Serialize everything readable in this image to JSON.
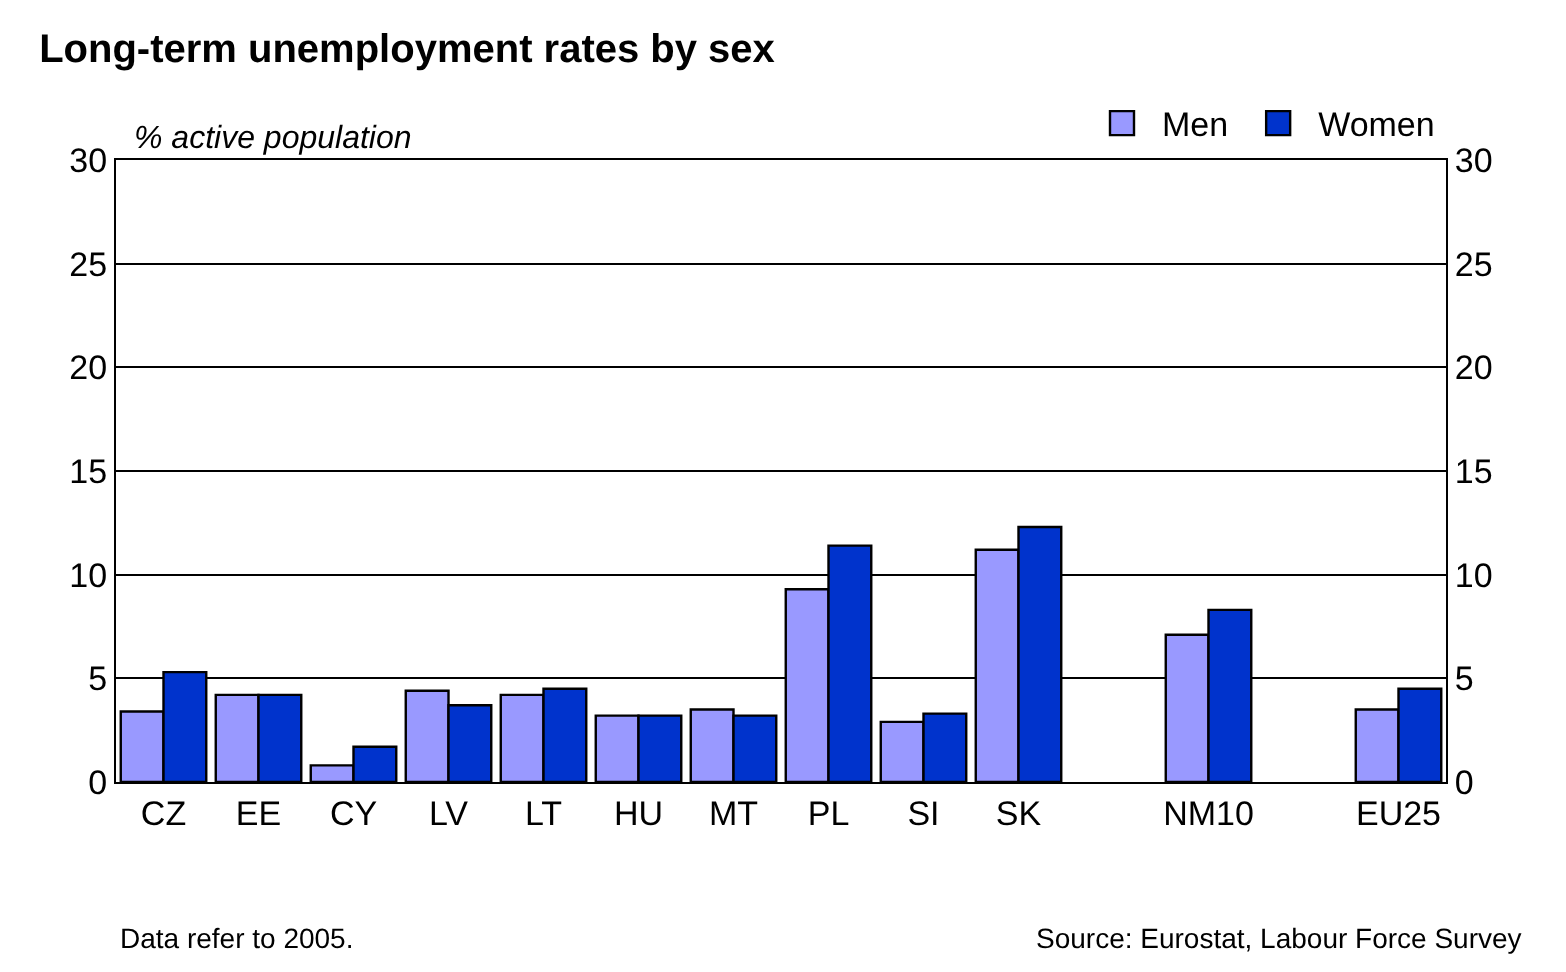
{
  "chart_data": {
    "type": "bar",
    "title": "Long-term unemployment rates by sex",
    "ylabel": "% active population",
    "categories": [
      "CZ",
      "EE",
      "CY",
      "LV",
      "LT",
      "HU",
      "MT",
      "PL",
      "SI",
      "SK",
      null,
      "NM10",
      null,
      "EU25"
    ],
    "series": [
      {
        "name": "Men",
        "color": "#9999ff",
        "values": [
          3.4,
          4.2,
          0.8,
          4.4,
          4.2,
          3.2,
          3.5,
          9.3,
          2.9,
          11.2,
          null,
          7.1,
          null,
          3.5
        ]
      },
      {
        "name": "Women",
        "color": "#0033cc",
        "values": [
          5.3,
          4.2,
          1.7,
          3.7,
          4.5,
          3.2,
          3.2,
          11.4,
          3.3,
          12.3,
          null,
          8.3,
          null,
          4.5
        ]
      }
    ],
    "ylim": [
      0,
      30
    ],
    "yticks": [
      0,
      5,
      10,
      15,
      20,
      25,
      30
    ],
    "y2lim": [
      0,
      30
    ],
    "y2ticks": [
      0,
      5,
      10,
      15,
      20,
      25,
      30
    ],
    "grid": "y",
    "legend": "top right",
    "annotations": [
      "Data refer to 2005.",
      "Source: Eurostat, Labour Force Survey"
    ]
  }
}
